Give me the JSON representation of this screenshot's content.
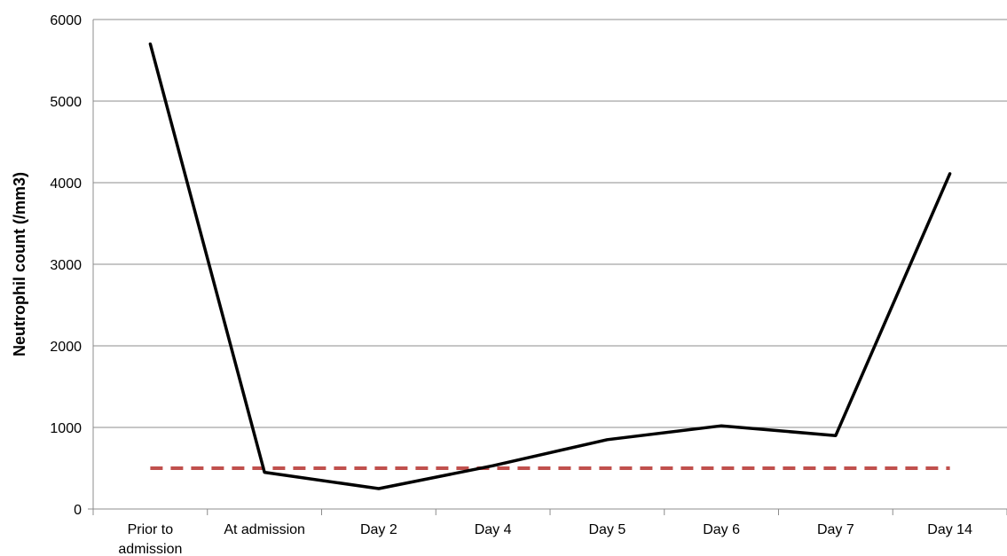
{
  "chart_data": {
    "type": "line",
    "title": "",
    "xlabel": "",
    "ylabel": "Neutrophil count (/mm3)",
    "ylim": [
      0,
      6000
    ],
    "yticks": [
      0,
      1000,
      2000,
      3000,
      4000,
      5000,
      6000
    ],
    "grid": true,
    "categories": [
      [
        "Prior to",
        "admission"
      ],
      [
        "At admission"
      ],
      [
        "Day 2"
      ],
      [
        "Day 4"
      ],
      [
        "Day 5"
      ],
      [
        "Day 6"
      ],
      [
        "Day 7"
      ],
      [
        "Day 14"
      ]
    ],
    "series": [
      {
        "values": [
          5700,
          450,
          250,
          530,
          850,
          1020,
          900,
          4110
        ],
        "color": "#000000",
        "style": "solid"
      },
      {
        "values": [
          500,
          500,
          500,
          500,
          500,
          500,
          500,
          500
        ],
        "color": "#c0504d",
        "style": "dashed"
      }
    ]
  }
}
